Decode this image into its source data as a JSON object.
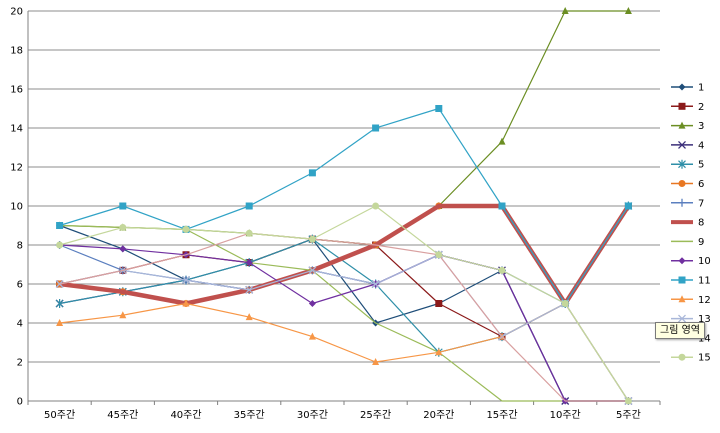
{
  "tooltip_text": "그림 영역",
  "chart_data": {
    "type": "line",
    "title": "",
    "xlabel": "",
    "ylabel": "",
    "ylim": [
      0,
      20
    ],
    "yticks": [
      0,
      2,
      4,
      6,
      8,
      10,
      12,
      14,
      16,
      18,
      20
    ],
    "grid": true,
    "legend": "right",
    "categories": [
      "50주간",
      "45주간",
      "40주간",
      "35주간",
      "30주간",
      "25주간",
      "20주간",
      "15주간",
      "10주간",
      "5주간"
    ],
    "series": [
      {
        "name": "1",
        "color": "#1f4e79",
        "marker": "diamond",
        "width": 1.2,
        "values": [
          9,
          7.8,
          6.2,
          7.1,
          8.3,
          4,
          5,
          6.7,
          0,
          0
        ]
      },
      {
        "name": "2",
        "color": "#8b1a1a",
        "marker": "square",
        "width": 1.2,
        "values": [
          6,
          6.7,
          7.5,
          7.1,
          8.3,
          8,
          5,
          3.3,
          5,
          10
        ]
      },
      {
        "name": "3",
        "color": "#6b8e23",
        "marker": "triangle",
        "width": 1.2,
        "values": [
          9,
          8.9,
          8.8,
          8.6,
          8.3,
          8,
          10,
          13.3,
          20,
          20
        ]
      },
      {
        "name": "4",
        "color": "#3b2f7a",
        "marker": "x",
        "width": 1.2,
        "values": [
          5,
          5.6,
          6.2,
          5.7,
          6.7,
          6,
          7.5,
          6.7,
          0,
          0
        ]
      },
      {
        "name": "5",
        "color": "#2f8fa8",
        "marker": "star",
        "width": 1.2,
        "values": [
          5,
          5.6,
          6.2,
          7.1,
          8.3,
          6,
          2.5,
          3.3,
          5,
          10
        ]
      },
      {
        "name": "6",
        "color": "#e87722",
        "marker": "circle",
        "width": 1.2,
        "values": [
          6,
          5.6,
          5,
          5.7,
          6.7,
          8,
          10,
          10,
          5,
          10
        ]
      },
      {
        "name": "7",
        "color": "#5b7fbf",
        "marker": "plus",
        "width": 1.2,
        "values": [
          8,
          6.7,
          6.2,
          5.7,
          6.7,
          6,
          7.5,
          6.7,
          5,
          0
        ]
      },
      {
        "name": "8",
        "color": "#c0504d",
        "marker": "none",
        "width": 4.5,
        "values": [
          6,
          5.6,
          5,
          5.7,
          6.7,
          8,
          10,
          10,
          5,
          10
        ]
      },
      {
        "name": "9",
        "color": "#9bbb59",
        "marker": "none",
        "width": 1.2,
        "values": [
          9,
          8.9,
          8.8,
          7.1,
          6.7,
          4,
          2.5,
          0,
          0,
          0
        ]
      },
      {
        "name": "10",
        "color": "#7030a0",
        "marker": "diamond",
        "width": 1.2,
        "values": [
          8,
          7.8,
          7.5,
          7.1,
          5,
          6,
          7.5,
          6.7,
          0,
          0
        ]
      },
      {
        "name": "11",
        "color": "#31a3c6",
        "marker": "square",
        "width": 1.2,
        "values": [
          9,
          10,
          8.8,
          10,
          11.7,
          14,
          15,
          10,
          5,
          10
        ]
      },
      {
        "name": "12",
        "color": "#f79646",
        "marker": "triangle",
        "width": 1.2,
        "values": [
          4,
          4.4,
          5,
          4.3,
          3.3,
          2,
          2.5,
          3.3,
          5,
          0
        ]
      },
      {
        "name": "13",
        "color": "#a9b7d9",
        "marker": "x",
        "width": 1.2,
        "values": [
          6,
          6.7,
          6.2,
          5.7,
          6.7,
          6,
          7.5,
          3.3,
          5,
          0
        ]
      },
      {
        "name": "14",
        "color": "#d9a0a0",
        "marker": "none",
        "width": 1.2,
        "values": [
          6,
          6.7,
          7.5,
          8.6,
          8.3,
          8,
          7.5,
          3.3,
          0,
          0
        ]
      },
      {
        "name": "15",
        "color": "#c4d79b",
        "marker": "circle",
        "width": 1.2,
        "values": [
          8,
          8.9,
          8.8,
          8.6,
          8.3,
          10,
          7.5,
          6.7,
          5,
          0
        ]
      }
    ]
  }
}
